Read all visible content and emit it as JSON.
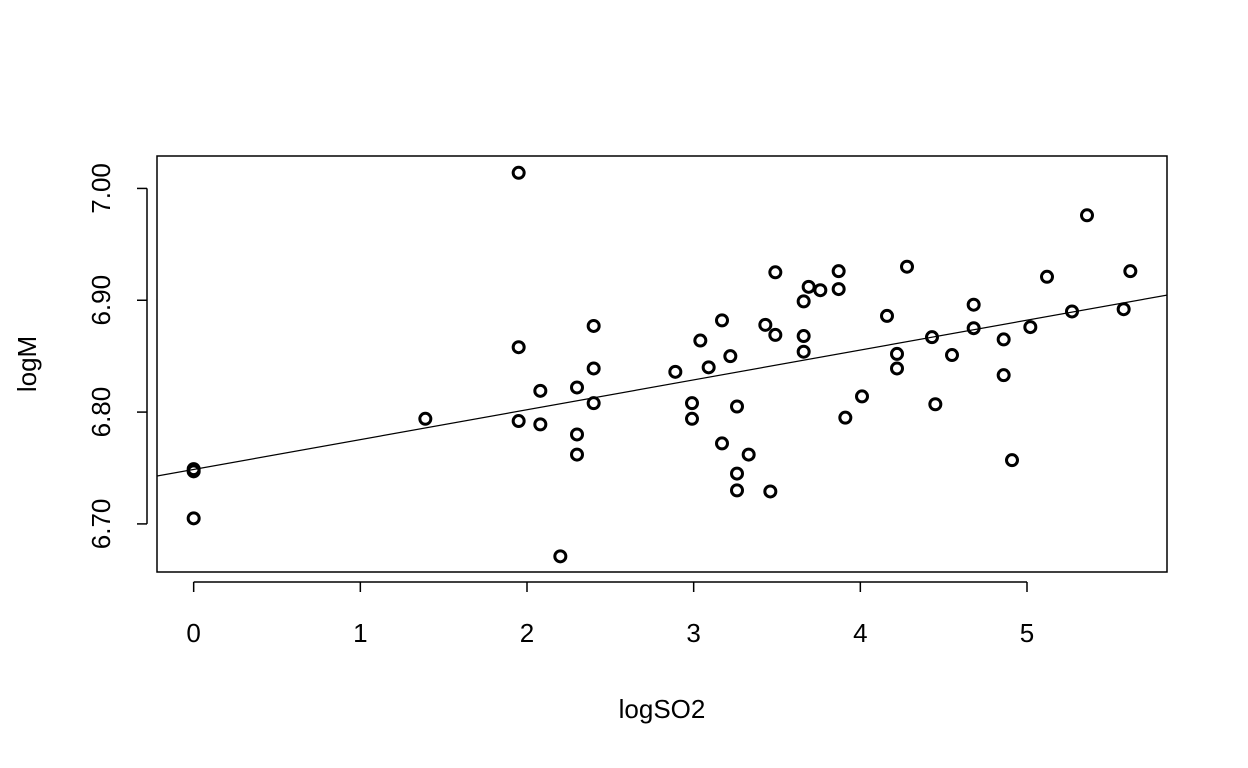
{
  "chart_data": {
    "type": "scatter",
    "title": "",
    "xlabel": "logSO2",
    "ylabel": "logM",
    "xlim": [
      -0.22,
      5.84
    ],
    "ylim": [
      6.657,
      7.029
    ],
    "x_ticks": [
      0,
      1,
      2,
      3,
      4,
      5
    ],
    "x_tick_labels": [
      "0",
      "1",
      "2",
      "3",
      "4",
      "5"
    ],
    "y_ticks": [
      6.7,
      6.8,
      6.9,
      7.0
    ],
    "y_tick_labels": [
      "6.70",
      "6.80",
      "6.90",
      "7.00"
    ],
    "grid": false,
    "legend": "none",
    "marker": "open-circle",
    "color": "#000000",
    "fit_line": {
      "intercept": 6.7487,
      "slope": 0.0267
    },
    "points": [
      [
        0.0,
        6.749
      ],
      [
        0.0,
        6.747
      ],
      [
        0.0,
        6.705
      ],
      [
        1.39,
        6.794
      ],
      [
        1.95,
        7.014
      ],
      [
        1.95,
        6.858
      ],
      [
        1.95,
        6.792
      ],
      [
        2.08,
        6.819
      ],
      [
        2.08,
        6.789
      ],
      [
        2.2,
        6.671
      ],
      [
        2.3,
        6.822
      ],
      [
        2.3,
        6.78
      ],
      [
        2.3,
        6.762
      ],
      [
        2.4,
        6.877
      ],
      [
        2.4,
        6.839
      ],
      [
        2.4,
        6.808
      ],
      [
        2.89,
        6.836
      ],
      [
        2.99,
        6.808
      ],
      [
        2.99,
        6.794
      ],
      [
        3.04,
        6.864
      ],
      [
        3.09,
        6.84
      ],
      [
        3.17,
        6.882
      ],
      [
        3.17,
        6.772
      ],
      [
        3.22,
        6.85
      ],
      [
        3.26,
        6.805
      ],
      [
        3.26,
        6.745
      ],
      [
        3.26,
        6.73
      ],
      [
        3.33,
        6.762
      ],
      [
        3.43,
        6.878
      ],
      [
        3.46,
        6.729
      ],
      [
        3.49,
        6.925
      ],
      [
        3.49,
        6.869
      ],
      [
        3.66,
        6.899
      ],
      [
        3.66,
        6.868
      ],
      [
        3.66,
        6.854
      ],
      [
        3.69,
        6.912
      ],
      [
        3.76,
        6.909
      ],
      [
        3.87,
        6.926
      ],
      [
        3.87,
        6.91
      ],
      [
        3.91,
        6.795
      ],
      [
        4.01,
        6.814
      ],
      [
        4.16,
        6.886
      ],
      [
        4.22,
        6.852
      ],
      [
        4.22,
        6.839
      ],
      [
        4.28,
        6.93
      ],
      [
        4.43,
        6.867
      ],
      [
        4.45,
        6.807
      ],
      [
        4.55,
        6.851
      ],
      [
        4.68,
        6.896
      ],
      [
        4.68,
        6.875
      ],
      [
        4.86,
        6.865
      ],
      [
        4.86,
        6.833
      ],
      [
        4.91,
        6.757
      ],
      [
        5.02,
        6.876
      ],
      [
        5.12,
        6.921
      ],
      [
        5.27,
        6.89
      ],
      [
        5.36,
        6.976
      ],
      [
        5.58,
        6.892
      ],
      [
        5.62,
        6.926
      ]
    ]
  }
}
